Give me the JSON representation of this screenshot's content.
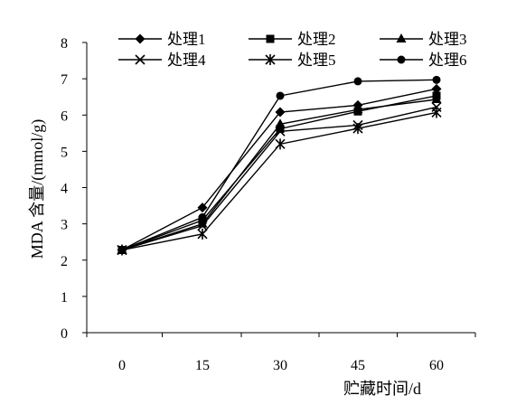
{
  "chart_data": {
    "type": "line",
    "title": "",
    "xlabel": "贮藏时间/d",
    "ylabel": "MDA 含量/(mmol/g)",
    "x": [
      0,
      15,
      30,
      45,
      60
    ],
    "x_tick_labels": [
      "0",
      "15",
      "30",
      "45",
      "60"
    ],
    "ylim": [
      0,
      8
    ],
    "y_tick_labels": [
      "0",
      "1",
      "2",
      "3",
      "4",
      "5",
      "6",
      "7",
      "8"
    ],
    "grid": false,
    "legend_position": "top",
    "series": [
      {
        "name": "处理1",
        "marker": "diamond",
        "values": [
          2.28,
          3.45,
          6.08,
          6.27,
          6.72
        ]
      },
      {
        "name": "处理2",
        "marker": "square",
        "values": [
          2.28,
          3.1,
          5.62,
          6.1,
          6.53
        ]
      },
      {
        "name": "处理3",
        "marker": "triangle",
        "values": [
          2.28,
          3.0,
          5.75,
          6.15,
          6.43
        ]
      },
      {
        "name": "处理4",
        "marker": "x",
        "values": [
          2.28,
          2.95,
          5.55,
          5.72,
          6.22
        ]
      },
      {
        "name": "处理5",
        "marker": "star",
        "values": [
          2.28,
          2.72,
          5.2,
          5.63,
          6.07
        ]
      },
      {
        "name": "处理6",
        "marker": "circle",
        "values": [
          2.28,
          3.18,
          6.53,
          6.93,
          6.97
        ]
      }
    ]
  }
}
